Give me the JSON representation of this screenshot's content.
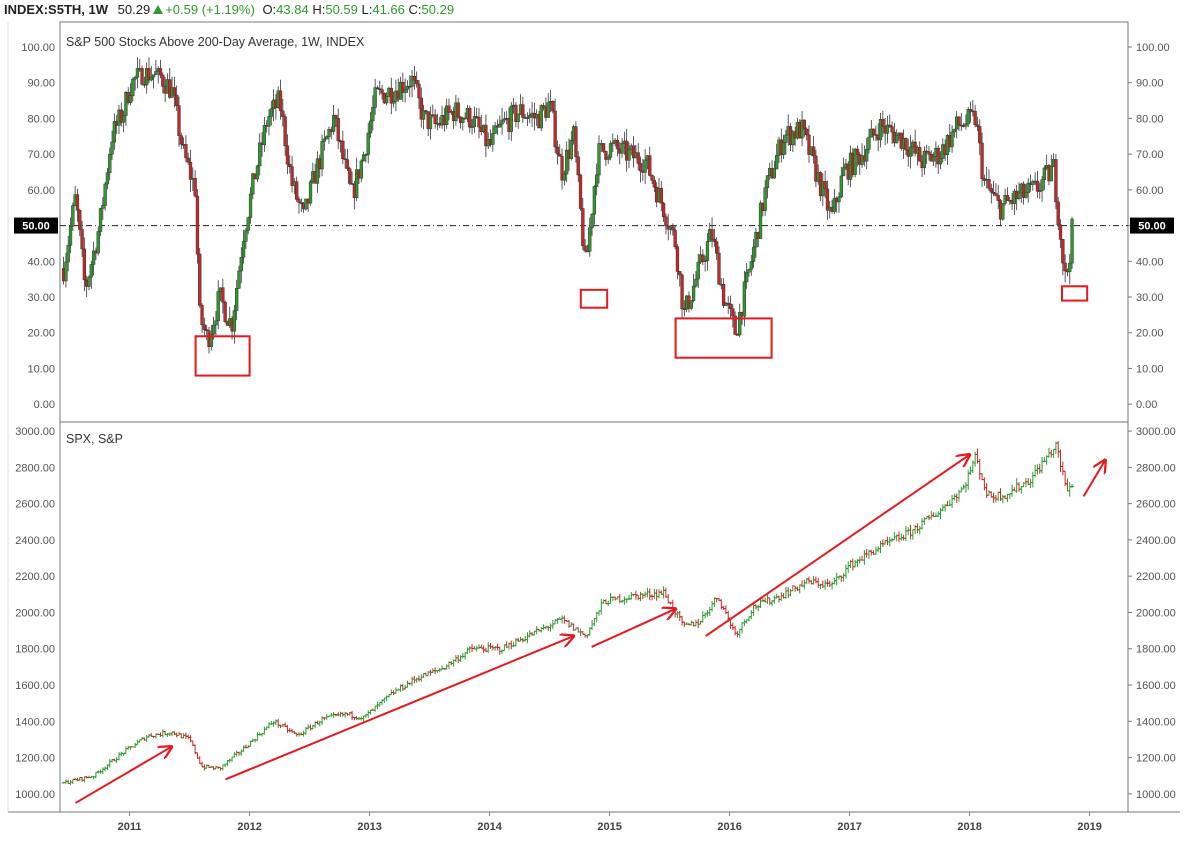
{
  "header": {
    "symbol": "INDEX:S5TH, 1W",
    "last": "50.29",
    "change": "+0.59 (+1.19%)",
    "open_label": "O:",
    "open": "43.84",
    "high_label": "H:",
    "high": "50.59",
    "low_label": "L:",
    "low": "41.66",
    "close_label": "C:",
    "close": "50.29"
  },
  "colors": {
    "up": "#2e9a2e",
    "down": "#c62828",
    "annotation": "#e8181c",
    "frame": "#7a7a7a",
    "grid_text": "#555555",
    "badge_bg": "#000000"
  },
  "chart_data": [
    {
      "type": "candlestick",
      "title": "S&P 500 Stocks Above 200-Day Average, 1W, INDEX",
      "ylim": [
        -5,
        107
      ],
      "y_ticks": [
        "0.00",
        "10.00",
        "20.00",
        "30.00",
        "40.00",
        "50.00",
        "60.00",
        "70.00",
        "80.00",
        "90.00",
        "100.00"
      ],
      "reference_line": {
        "value": 50,
        "label": "50.00",
        "style": "dash-dot"
      },
      "last_value": 50.29,
      "x_ticks": [
        "2011",
        "2012",
        "2013",
        "2014",
        "2015",
        "2016",
        "2017",
        "2018",
        "2019"
      ],
      "weekly_close_approx": [
        {
          "x": 2010.45,
          "y": 38
        },
        {
          "x": 2010.55,
          "y": 58
        },
        {
          "x": 2010.63,
          "y": 32
        },
        {
          "x": 2010.75,
          "y": 50
        },
        {
          "x": 2010.85,
          "y": 75
        },
        {
          "x": 2010.95,
          "y": 82
        },
        {
          "x": 2011.0,
          "y": 89
        },
        {
          "x": 2011.1,
          "y": 93
        },
        {
          "x": 2011.25,
          "y": 92
        },
        {
          "x": 2011.35,
          "y": 88
        },
        {
          "x": 2011.45,
          "y": 70
        },
        {
          "x": 2011.55,
          "y": 60
        },
        {
          "x": 2011.58,
          "y": 25
        },
        {
          "x": 2011.65,
          "y": 18
        },
        {
          "x": 2011.75,
          "y": 30
        },
        {
          "x": 2011.85,
          "y": 22
        },
        {
          "x": 2011.95,
          "y": 48
        },
        {
          "x": 2012.05,
          "y": 65
        },
        {
          "x": 2012.15,
          "y": 80
        },
        {
          "x": 2012.25,
          "y": 85
        },
        {
          "x": 2012.35,
          "y": 62
        },
        {
          "x": 2012.45,
          "y": 52
        },
        {
          "x": 2012.55,
          "y": 65
        },
        {
          "x": 2012.7,
          "y": 80
        },
        {
          "x": 2012.85,
          "y": 58
        },
        {
          "x": 2012.95,
          "y": 70
        },
        {
          "x": 2013.05,
          "y": 86
        },
        {
          "x": 2013.2,
          "y": 88
        },
        {
          "x": 2013.35,
          "y": 91
        },
        {
          "x": 2013.45,
          "y": 80
        },
        {
          "x": 2013.55,
          "y": 78
        },
        {
          "x": 2013.7,
          "y": 82
        },
        {
          "x": 2013.85,
          "y": 80
        },
        {
          "x": 2014.0,
          "y": 72
        },
        {
          "x": 2014.1,
          "y": 78
        },
        {
          "x": 2014.25,
          "y": 82
        },
        {
          "x": 2014.4,
          "y": 80
        },
        {
          "x": 2014.5,
          "y": 84
        },
        {
          "x": 2014.6,
          "y": 65
        },
        {
          "x": 2014.7,
          "y": 75
        },
        {
          "x": 2014.8,
          "y": 38
        },
        {
          "x": 2014.9,
          "y": 70
        },
        {
          "x": 2015.0,
          "y": 72
        },
        {
          "x": 2015.15,
          "y": 70
        },
        {
          "x": 2015.3,
          "y": 68
        },
        {
          "x": 2015.45,
          "y": 55
        },
        {
          "x": 2015.55,
          "y": 45
        },
        {
          "x": 2015.62,
          "y": 25
        },
        {
          "x": 2015.72,
          "y": 35
        },
        {
          "x": 2015.85,
          "y": 48
        },
        {
          "x": 2015.95,
          "y": 30
        },
        {
          "x": 2016.05,
          "y": 20
        },
        {
          "x": 2016.15,
          "y": 35
        },
        {
          "x": 2016.3,
          "y": 60
        },
        {
          "x": 2016.45,
          "y": 75
        },
        {
          "x": 2016.6,
          "y": 77
        },
        {
          "x": 2016.75,
          "y": 62
        },
        {
          "x": 2016.85,
          "y": 52
        },
        {
          "x": 2016.95,
          "y": 65
        },
        {
          "x": 2017.1,
          "y": 70
        },
        {
          "x": 2017.25,
          "y": 78
        },
        {
          "x": 2017.45,
          "y": 74
        },
        {
          "x": 2017.6,
          "y": 68
        },
        {
          "x": 2017.75,
          "y": 70
        },
        {
          "x": 2017.9,
          "y": 78
        },
        {
          "x": 2018.05,
          "y": 80
        },
        {
          "x": 2018.12,
          "y": 62
        },
        {
          "x": 2018.25,
          "y": 55
        },
        {
          "x": 2018.4,
          "y": 58
        },
        {
          "x": 2018.55,
          "y": 60
        },
        {
          "x": 2018.7,
          "y": 66
        },
        {
          "x": 2018.75,
          "y": 50
        },
        {
          "x": 2018.8,
          "y": 34
        },
        {
          "x": 2018.84,
          "y": 44
        },
        {
          "x": 2018.86,
          "y": 50.29
        }
      ],
      "annotations": [
        {
          "type": "box",
          "x": [
            2011.55,
            2012.0
          ],
          "y": [
            8,
            19
          ]
        },
        {
          "type": "box",
          "x": [
            2014.76,
            2014.98
          ],
          "y": [
            27,
            32
          ]
        },
        {
          "type": "box",
          "x": [
            2015.55,
            2016.35
          ],
          "y": [
            13,
            24
          ]
        },
        {
          "type": "box",
          "x": [
            2018.77,
            2018.98
          ],
          "y": [
            29,
            33
          ]
        }
      ]
    },
    {
      "type": "ohlc",
      "title": "SPX, S&P",
      "ylim": [
        900,
        3050
      ],
      "y_ticks": [
        "1000.00",
        "1200.00",
        "1400.00",
        "1600.00",
        "1800.00",
        "2000.00",
        "2200.00",
        "2400.00",
        "2600.00",
        "2800.00",
        "3000.00"
      ],
      "x_ticks": [
        "2011",
        "2012",
        "2013",
        "2014",
        "2015",
        "2016",
        "2017",
        "2018",
        "2019"
      ],
      "weekly_close_approx": [
        {
          "x": 2010.45,
          "y": 1060
        },
        {
          "x": 2010.7,
          "y": 1100
        },
        {
          "x": 2010.95,
          "y": 1230
        },
        {
          "x": 2011.15,
          "y": 1320
        },
        {
          "x": 2011.35,
          "y": 1340
        },
        {
          "x": 2011.5,
          "y": 1300
        },
        {
          "x": 2011.6,
          "y": 1150
        },
        {
          "x": 2011.75,
          "y": 1140
        },
        {
          "x": 2011.95,
          "y": 1250
        },
        {
          "x": 2012.2,
          "y": 1400
        },
        {
          "x": 2012.4,
          "y": 1320
        },
        {
          "x": 2012.6,
          "y": 1410
        },
        {
          "x": 2012.8,
          "y": 1440
        },
        {
          "x": 2012.95,
          "y": 1420
        },
        {
          "x": 2013.2,
          "y": 1560
        },
        {
          "x": 2013.4,
          "y": 1640
        },
        {
          "x": 2013.6,
          "y": 1690
        },
        {
          "x": 2013.85,
          "y": 1800
        },
        {
          "x": 2014.1,
          "y": 1800
        },
        {
          "x": 2014.35,
          "y": 1880
        },
        {
          "x": 2014.6,
          "y": 1960
        },
        {
          "x": 2014.8,
          "y": 1870
        },
        {
          "x": 2014.95,
          "y": 2060
        },
        {
          "x": 2015.2,
          "y": 2090
        },
        {
          "x": 2015.45,
          "y": 2110
        },
        {
          "x": 2015.62,
          "y": 1920
        },
        {
          "x": 2015.75,
          "y": 1950
        },
        {
          "x": 2015.9,
          "y": 2090
        },
        {
          "x": 2016.05,
          "y": 1880
        },
        {
          "x": 2016.2,
          "y": 2030
        },
        {
          "x": 2016.45,
          "y": 2100
        },
        {
          "x": 2016.65,
          "y": 2170
        },
        {
          "x": 2016.85,
          "y": 2150
        },
        {
          "x": 2017.0,
          "y": 2260
        },
        {
          "x": 2017.25,
          "y": 2360
        },
        {
          "x": 2017.5,
          "y": 2440
        },
        {
          "x": 2017.75,
          "y": 2560
        },
        {
          "x": 2017.95,
          "y": 2690
        },
        {
          "x": 2018.05,
          "y": 2860
        },
        {
          "x": 2018.15,
          "y": 2640
        },
        {
          "x": 2018.3,
          "y": 2650
        },
        {
          "x": 2018.5,
          "y": 2730
        },
        {
          "x": 2018.65,
          "y": 2860
        },
        {
          "x": 2018.72,
          "y": 2920
        },
        {
          "x": 2018.78,
          "y": 2750
        },
        {
          "x": 2018.82,
          "y": 2660
        },
        {
          "x": 2018.86,
          "y": 2720
        }
      ],
      "annotations": [
        {
          "type": "arrow",
          "from": [
            2010.55,
            950
          ],
          "to": [
            2011.35,
            1260
          ]
        },
        {
          "type": "arrow",
          "from": [
            2011.8,
            1080
          ],
          "to": [
            2014.7,
            1870
          ]
        },
        {
          "type": "arrow",
          "from": [
            2014.85,
            1810
          ],
          "to": [
            2015.55,
            2020
          ]
        },
        {
          "type": "arrow",
          "from": [
            2015.8,
            1870
          ],
          "to": [
            2018.0,
            2870
          ]
        },
        {
          "type": "arrow",
          "from": [
            2018.95,
            2640
          ],
          "to": [
            2019.13,
            2840
          ]
        }
      ]
    }
  ]
}
